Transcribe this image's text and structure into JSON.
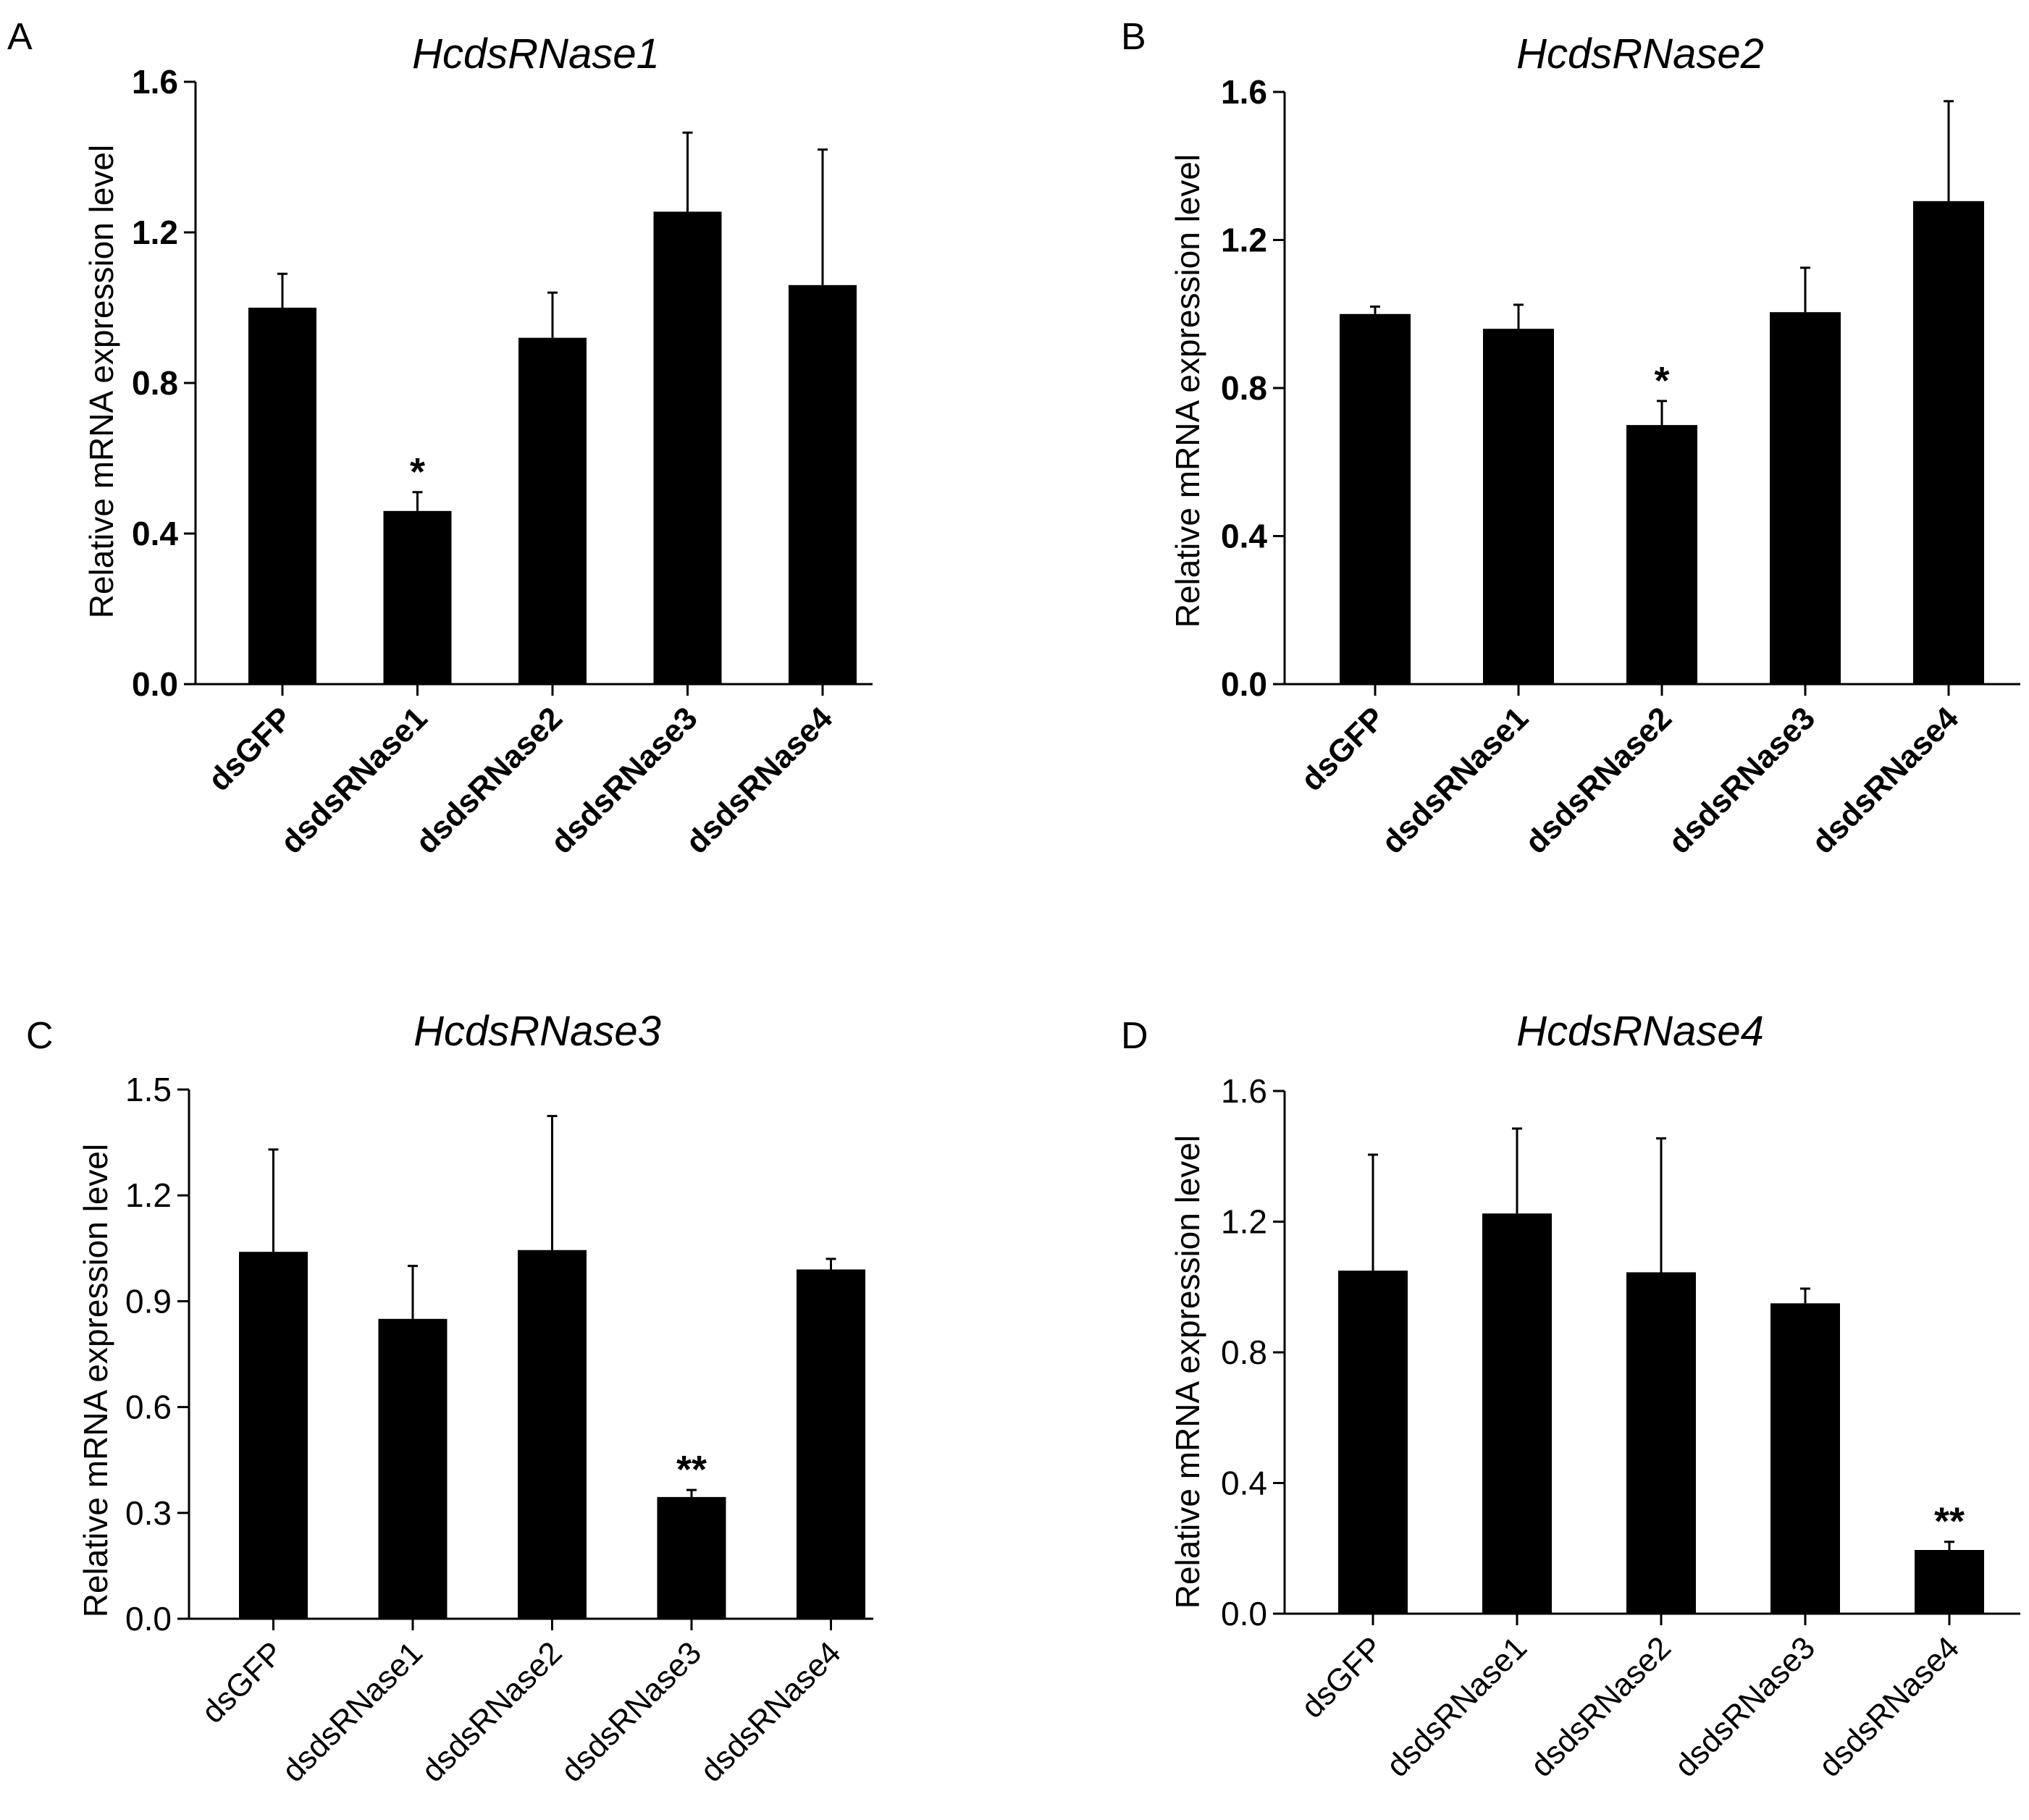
{
  "colors": {
    "bar": "#000000",
    "axis": "#000000",
    "background": "#ffffff"
  },
  "chart_data": [
    {
      "panel": "A",
      "type": "bar",
      "title": "HcdsRNase1",
      "xlabel": "",
      "ylabel": "Relative mRNA expression level",
      "ylim": [
        0,
        1.6
      ],
      "yticks": [
        "0.0",
        "0.4",
        "0.8",
        "1.2",
        "1.6"
      ],
      "categories": [
        "dsGFP",
        "dsdsRNase1",
        "dsdsRNase2",
        "dsdsRNase3",
        "dsdsRNase4"
      ],
      "values": [
        1.0,
        0.46,
        0.92,
        1.255,
        1.06
      ],
      "errors": [
        0.09,
        0.05,
        0.12,
        0.21,
        0.36
      ],
      "significance": [
        "",
        "*",
        "",
        "",
        ""
      ],
      "grid": false
    },
    {
      "panel": "B",
      "type": "bar",
      "title": "HcdsRNase2",
      "xlabel": "",
      "ylabel": "Relative mRNA expression level",
      "ylim": [
        0,
        1.6
      ],
      "yticks": [
        "0.0",
        "0.4",
        "0.8",
        "1.2",
        "1.6"
      ],
      "categories": [
        "dsGFP",
        "dsdsRNase1",
        "dsdsRNase2",
        "dsdsRNase3",
        "dsdsRNase4"
      ],
      "values": [
        1.0,
        0.96,
        0.7,
        1.005,
        1.305
      ],
      "errors": [
        0.02,
        0.065,
        0.065,
        0.12,
        0.27
      ],
      "significance": [
        "",
        "",
        "*",
        "",
        ""
      ],
      "grid": false
    },
    {
      "panel": "C",
      "type": "bar",
      "title": "HcdsRNase3",
      "xlabel": "",
      "ylabel": "Relative mRNA expression level",
      "ylim": [
        0,
        1.5
      ],
      "yticks": [
        "0.0",
        "0.3",
        "0.6",
        "0.9",
        "1.2",
        "1.5"
      ],
      "categories": [
        "dsGFP",
        "dsdsRNase1",
        "dsdsRNase2",
        "dsdsRNase3",
        "dsdsRNase4"
      ],
      "values": [
        1.04,
        0.85,
        1.045,
        0.345,
        0.99
      ],
      "errors": [
        0.29,
        0.15,
        0.38,
        0.02,
        0.03
      ],
      "significance": [
        "",
        "",
        "",
        "**",
        ""
      ],
      "grid": false
    },
    {
      "panel": "D",
      "type": "bar",
      "title": "HcdsRNase4",
      "xlabel": "",
      "ylabel": "Relative mRNA expression level",
      "ylim": [
        0,
        1.6
      ],
      "yticks": [
        "0.0",
        "0.4",
        "0.8",
        "1.2",
        "1.6"
      ],
      "categories": [
        "dsGFP",
        "dsdsRNase1",
        "dsdsRNase2",
        "dsdsRNase3",
        "dsdsRNase4"
      ],
      "values": [
        1.05,
        1.225,
        1.045,
        0.95,
        0.195
      ],
      "errors": [
        0.355,
        0.26,
        0.41,
        0.045,
        0.025
      ],
      "significance": [
        "",
        "",
        "",
        "",
        "**"
      ],
      "grid": false
    }
  ]
}
